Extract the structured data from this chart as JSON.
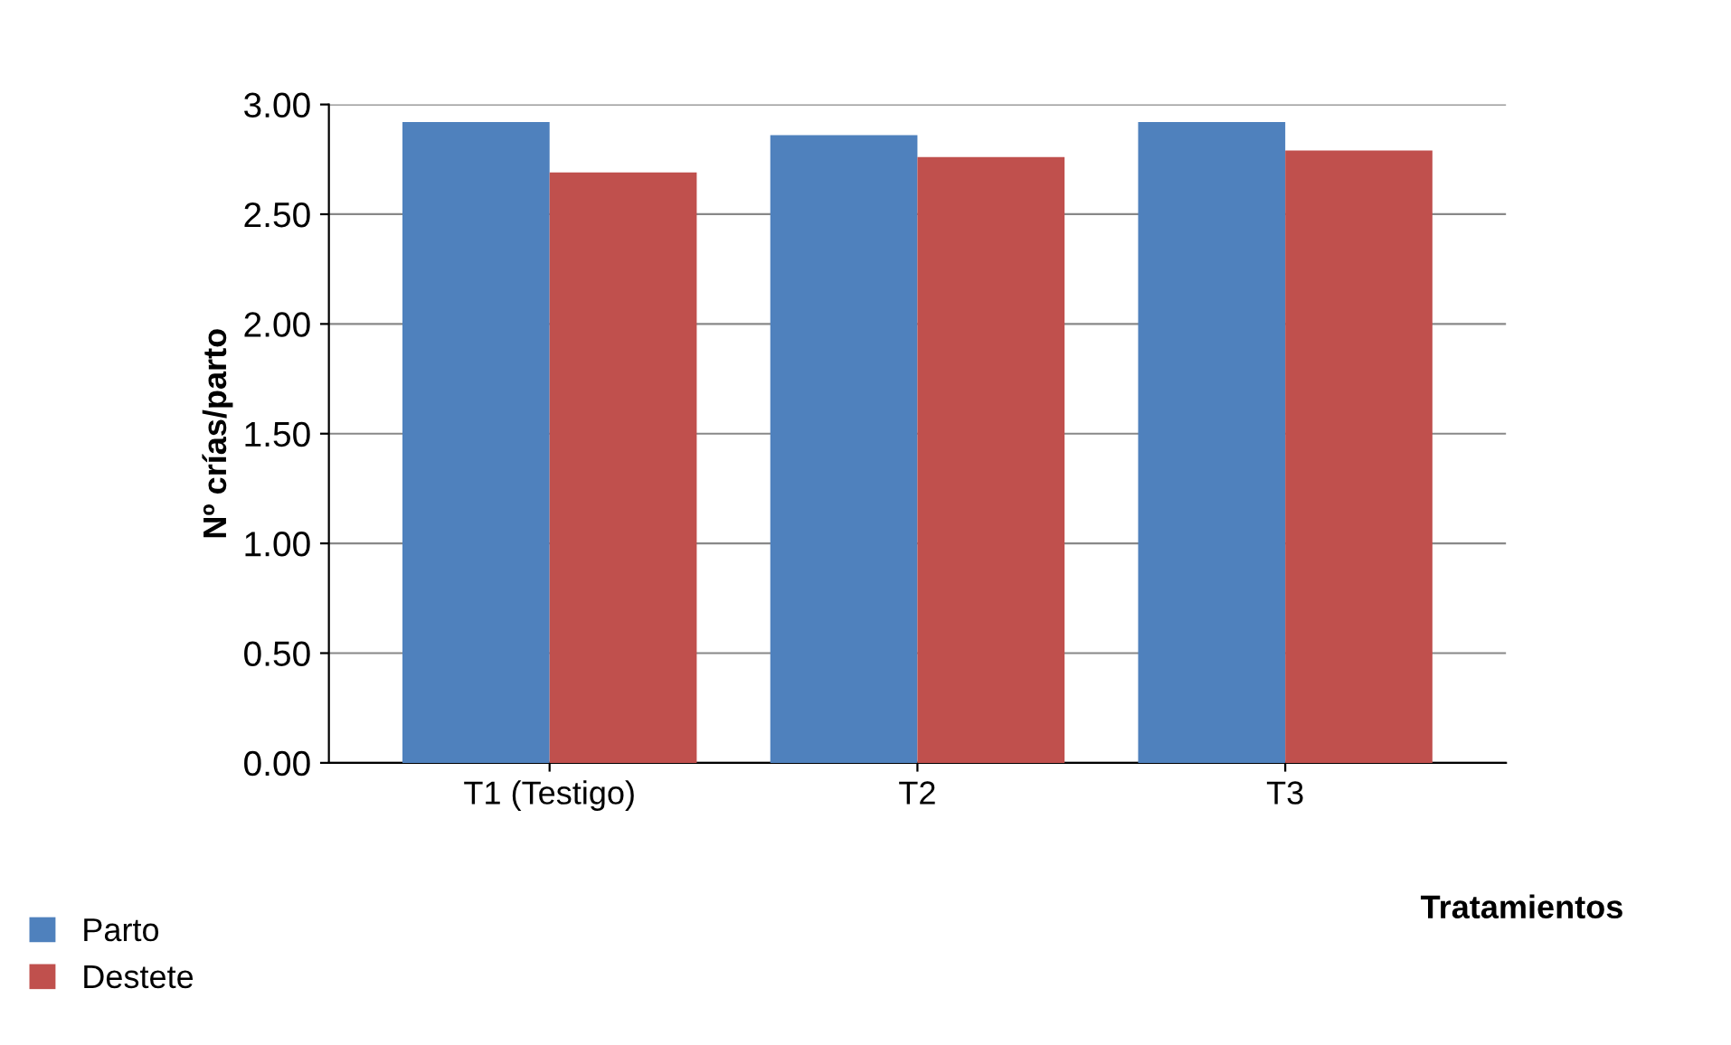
{
  "chart_data": {
    "type": "bar",
    "xlabel": "Tratamientos",
    "ylabel": "Nº crías/parto",
    "categories": [
      "T1 (Testigo)",
      "T2",
      "T3"
    ],
    "series": [
      {
        "name": "Parto",
        "color": "#4f81bd",
        "values": [
          2.92,
          2.86,
          2.92
        ]
      },
      {
        "name": "Destete",
        "color": "#c0504d",
        "values": [
          2.69,
          2.76,
          2.79
        ]
      }
    ],
    "ylim": [
      0,
      3
    ],
    "yticks": [
      {
        "value": 0,
        "label": "0.00"
      },
      {
        "value": 0.5,
        "label": "0.50"
      },
      {
        "value": 1,
        "label": "1.00"
      },
      {
        "value": 1.5,
        "label": "1.50"
      },
      {
        "value": 2,
        "label": "2.00"
      },
      {
        "value": 2.5,
        "label": "2.50"
      },
      {
        "value": 3,
        "label": "3.00"
      }
    ],
    "grid": "y",
    "legend": "bottom left"
  }
}
